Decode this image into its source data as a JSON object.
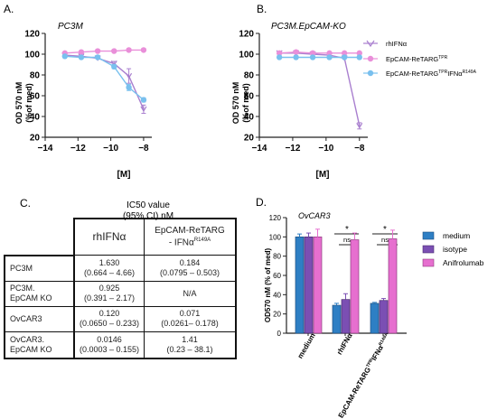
{
  "panels": {
    "A": {
      "letter": "A.",
      "title": "PC3M",
      "ylabel_line1": "OD 570 nM",
      "ylabel_line2": "(%of med)",
      "xlabel": "[M]",
      "x_ticks": [
        "−14",
        "−12",
        "−10",
        "−8"
      ],
      "y_ticks": [
        "20",
        "40",
        "60",
        "80",
        "100",
        "120"
      ]
    },
    "B": {
      "letter": "B.",
      "title": "PC3M.EpCAM-KO",
      "ylabel_line1": "OD 570 nM",
      "ylabel_line2": "(%of med)",
      "xlabel": "[M]",
      "x_ticks": [
        "−14",
        "−12",
        "−10",
        "−8"
      ],
      "y_ticks": [
        "20",
        "40",
        "60",
        "80",
        "100",
        "120"
      ],
      "legend": [
        {
          "text": "rhIFNα",
          "sup": ""
        },
        {
          "text": "EpCAM-ReTARG",
          "sup": "TPR"
        },
        {
          "text": "EpCAM-ReTARG",
          "sup": "TPR",
          "text2": "IFNα",
          "sup2": "R149A"
        }
      ]
    },
    "C": {
      "letter": "C.",
      "title_line1": "IC50 value",
      "title_line2": "(95% CI) nM"
    },
    "D": {
      "letter": "D.",
      "title": "OvCAR3",
      "ylabel": "OD570 nM (% of med)",
      "y_ticks": [
        "0",
        "20",
        "40",
        "60",
        "80",
        "100",
        "120"
      ],
      "x_labels": [
        "medium",
        "rhIFNα",
        "EpCAM-ReTARG"
      ],
      "x_label_3_sup": "TPR",
      "x_label_3_tail": "IFNα",
      "x_label_3_tail_sup": "R149A",
      "sig_star": "*",
      "sig_ns": "ns",
      "legend": [
        "medium",
        "isotype",
        "Anifrolumab"
      ]
    }
  },
  "table": {
    "col_headers": [
      {
        "text": "rhIFNα"
      },
      {
        "line1": "EpCAM-ReTARG",
        "line2": "- IFNα",
        "sup": "R149A"
      }
    ],
    "rows": [
      {
        "label1": "PC3M",
        "label2": "",
        "v1": "1.630",
        "ci1": "(0.664 – 4.66)",
        "v2": "0.184",
        "ci2": "(0.0795 – 0.503)"
      },
      {
        "label1": "PC3M.",
        "label2": "EpCAM KO",
        "v1": "0.925",
        "ci1": "(0.391 – 2.17)",
        "v2": "N/A",
        "ci2": ""
      },
      {
        "label1": "OvCAR3",
        "label2": "",
        "v1": "0.120",
        "ci1": "(0.0650 – 0.233)",
        "v2": "0.071",
        "ci2": "(0.0261– 0.178)"
      },
      {
        "label1": "OvCAR3.",
        "label2": "EpCAM KO",
        "v1": "0.0146",
        "ci1": "(0.0003 – 0.155)",
        "v2": "1.41",
        "ci2": "(0.23 – 38.1)"
      }
    ]
  },
  "colors": {
    "rhIFNa": "#a97fcf",
    "retarg_tpr": "#e98fd9",
    "retarg_mut": "#79c0ee",
    "medium": "#2e7fc4",
    "isotype": "#7b4fb3",
    "anifrolumab": "#e66fcf"
  },
  "chart_data": [
    {
      "type": "line",
      "panel": "A",
      "title": "PC3M",
      "xlabel": "[M]",
      "ylabel": "OD 570 nM (%of med)",
      "xlim": [
        -14,
        -7.5
      ],
      "ylim": [
        20,
        120
      ],
      "series": [
        {
          "name": "rhIFNα",
          "x": [
            -12.8,
            -11.8,
            -10.8,
            -9.8,
            -8.9,
            -8.0
          ],
          "y": [
            99,
            98,
            96,
            91,
            79,
            47
          ],
          "err": [
            1,
            1,
            1,
            2,
            7,
            4
          ]
        },
        {
          "name": "EpCAM-ReTARGTPR",
          "x": [
            -12.8,
            -11.8,
            -10.8,
            -9.8,
            -8.9,
            -8.0
          ],
          "y": [
            101,
            102,
            103,
            103,
            104,
            104
          ],
          "err": [
            1,
            1,
            1,
            1,
            1,
            1
          ]
        },
        {
          "name": "EpCAM-ReTARGTPR IFNαR149A",
          "x": [
            -12.8,
            -11.8,
            -10.8,
            -9.8,
            -8.9,
            -8.0
          ],
          "y": [
            98,
            97,
            97,
            88,
            68,
            56
          ],
          "err": [
            1,
            1,
            1,
            2,
            3,
            2
          ]
        }
      ]
    },
    {
      "type": "line",
      "panel": "B",
      "title": "PC3M.EpCAM-KO",
      "xlabel": "[M]",
      "ylabel": "OD 570 nM (%of med)",
      "xlim": [
        -14,
        -7.5
      ],
      "ylim": [
        20,
        120
      ],
      "series": [
        {
          "name": "rhIFNα",
          "x": [
            -12.8,
            -11.8,
            -10.8,
            -9.8,
            -8.9,
            -8.0
          ],
          "y": [
            101,
            101,
            100,
            99,
            96,
            31
          ],
          "err": [
            1,
            1,
            1,
            1,
            1,
            3
          ]
        },
        {
          "name": "EpCAM-ReTARGTPR",
          "x": [
            -12.8,
            -11.8,
            -10.8,
            -9.8,
            -8.9,
            -8.0
          ],
          "y": [
            101,
            102,
            101,
            101,
            101,
            101
          ],
          "err": [
            1,
            1,
            1,
            1,
            1,
            1
          ]
        },
        {
          "name": "EpCAM-ReTARGTPR IFNαR149A",
          "x": [
            -12.8,
            -11.8,
            -10.8,
            -9.8,
            -8.9,
            -8.0
          ],
          "y": [
            97,
            97,
            97,
            97,
            97,
            97
          ],
          "err": [
            1,
            1,
            1,
            1,
            1,
            1
          ]
        }
      ]
    },
    {
      "type": "bar",
      "panel": "D",
      "title": "OvCAR3",
      "ylabel": "OD570 nM (% of med)",
      "ylim": [
        0,
        120
      ],
      "categories": [
        "medium",
        "rhIFNα",
        "EpCAM-ReTARGTPR IFNαR149A"
      ],
      "series": [
        {
          "name": "medium",
          "values": [
            100,
            29,
            31
          ],
          "err": [
            3,
            2,
            1
          ]
        },
        {
          "name": "isotype",
          "values": [
            100,
            35,
            34
          ],
          "err": [
            4,
            6,
            2
          ]
        },
        {
          "name": "Anifrolumab",
          "values": [
            100,
            97,
            98
          ],
          "err": [
            8,
            7,
            9
          ]
        }
      ]
    }
  ]
}
